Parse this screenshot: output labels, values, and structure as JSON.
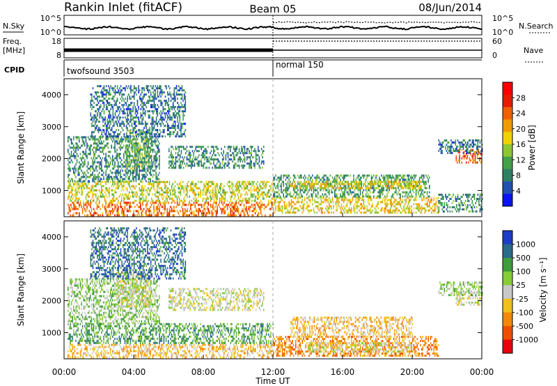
{
  "header": {
    "title": "Rankin Inlet (fitACF)",
    "beam": "Beam 05",
    "date": "08/Jun/2014"
  },
  "status_panels": {
    "nsky_label": "N.Sky",
    "nsearch_label": "N.Search",
    "nsky_ticks": [
      "10^5",
      "10^0"
    ],
    "nsearch_ticks": [
      "10^5",
      "10^0"
    ],
    "freq_label": "Freq.",
    "freq_unit": "[MHz]",
    "freq_ticks": [
      "18",
      "8"
    ],
    "nave_label": "Nave",
    "nave_ticks": [
      "60",
      "0"
    ],
    "cpid_label": "CPID",
    "cpid_segments": [
      {
        "name": "twofsound 3503",
        "start_hour": 0,
        "end_hour": 12
      },
      {
        "name": "normal 150",
        "start_hour": 12,
        "end_hour": 24
      }
    ]
  },
  "axes": {
    "xlabel": "Time UT",
    "x_ticks": [
      "00:00",
      "04:00",
      "08:00",
      "12:00",
      "16:00",
      "20:00",
      "00:00"
    ],
    "x_range_hours": [
      0,
      24
    ],
    "ylabel": "Slant Range [km]",
    "y_ticks": [
      "4000",
      "3000",
      "2000",
      "1000"
    ],
    "y_range_km": [
      180,
      4500
    ]
  },
  "colors": {
    "power": [
      "#0a14f0",
      "#2151b0",
      "#2e7f62",
      "#43a14a",
      "#8ec631",
      "#f0d200",
      "#f09a00",
      "#f06000",
      "#e61b00",
      "#ff0000"
    ],
    "velocity": [
      "#e8000c",
      "#ef4e00",
      "#f4880a",
      "#f0c01a",
      "#c8c8c8",
      "#86cc34",
      "#3f9c3c",
      "#2a6a8a",
      "#1c3cc8"
    ]
  },
  "chart_data": [
    {
      "type": "heatmap",
      "name": "power",
      "colorbar_label": "Power [dB]",
      "colorbar_ticks": [
        "28",
        "24",
        "20",
        "16",
        "12",
        "8",
        "4"
      ],
      "colorbar_range": [
        0,
        32
      ],
      "x_range_hours": [
        0,
        24
      ],
      "y_range_km": [
        180,
        4500
      ],
      "regions": [
        {
          "t0": 0.2,
          "t1": 12.0,
          "r0": 200,
          "r1": 650,
          "level": 24
        },
        {
          "t0": 0.2,
          "t1": 12.0,
          "r0": 650,
          "r1": 1300,
          "level": 16
        },
        {
          "t0": 0.2,
          "t1": 5.5,
          "r0": 1300,
          "r1": 2700,
          "level": 8
        },
        {
          "t0": 3.5,
          "t1": 5.0,
          "r0": 1700,
          "r1": 2900,
          "level": 12
        },
        {
          "t0": 1.5,
          "t1": 7.0,
          "r0": 2700,
          "r1": 4300,
          "level": 6
        },
        {
          "t0": 6.0,
          "t1": 11.5,
          "r0": 1700,
          "r1": 2400,
          "level": 8
        },
        {
          "t0": 12.0,
          "t1": 21.5,
          "r0": 300,
          "r1": 800,
          "level": 18
        },
        {
          "t0": 12.0,
          "t1": 21.0,
          "r0": 800,
          "r1": 1500,
          "level": 10
        },
        {
          "t0": 13.0,
          "t1": 20.5,
          "r0": 1100,
          "r1": 1300,
          "level": 18
        },
        {
          "t0": 22.5,
          "t1": 24.0,
          "r0": 1900,
          "r1": 2300,
          "level": 26
        },
        {
          "t0": 21.5,
          "t1": 24.0,
          "r0": 2200,
          "r1": 2600,
          "level": 6
        },
        {
          "t0": 21.5,
          "t1": 24.0,
          "r0": 350,
          "r1": 900,
          "level": 8
        }
      ]
    },
    {
      "type": "heatmap",
      "name": "velocity",
      "colorbar_label": "Velocity [m s⁻¹]",
      "colorbar_ticks": [
        "1000",
        "500",
        "100",
        "25",
        "-25",
        "-100",
        "-500",
        "-1000"
      ],
      "x_range_hours": [
        0,
        24
      ],
      "y_range_km": [
        180,
        4500
      ],
      "regions": [
        {
          "t0": 0.2,
          "t1": 12.0,
          "r0": 200,
          "r1": 650,
          "level": 3
        },
        {
          "t0": 0.2,
          "t1": 12.0,
          "r0": 650,
          "r1": 1300,
          "level": 6
        },
        {
          "t0": 0.2,
          "t1": 5.5,
          "r0": 1300,
          "r1": 2700,
          "level": 5
        },
        {
          "t0": 3.0,
          "t1": 5.0,
          "r0": 1800,
          "r1": 2900,
          "level": 4
        },
        {
          "t0": 1.5,
          "t1": 7.0,
          "r0": 2700,
          "r1": 4300,
          "level": 7
        },
        {
          "t0": 6.0,
          "t1": 11.5,
          "r0": 1700,
          "r1": 2400,
          "level": 4
        },
        {
          "t0": 12.0,
          "t1": 21.5,
          "r0": 300,
          "r1": 900,
          "level": 2
        },
        {
          "t0": 13.0,
          "t1": 20.0,
          "r0": 900,
          "r1": 1500,
          "level": 3
        },
        {
          "t0": 14.0,
          "t1": 20.0,
          "r0": 400,
          "r1": 700,
          "level": 4
        },
        {
          "t0": 22.5,
          "t1": 24.0,
          "r0": 1900,
          "r1": 2300,
          "level": 4
        },
        {
          "t0": 21.5,
          "t1": 24.0,
          "r0": 2200,
          "r1": 2600,
          "level": 5
        }
      ]
    }
  ]
}
